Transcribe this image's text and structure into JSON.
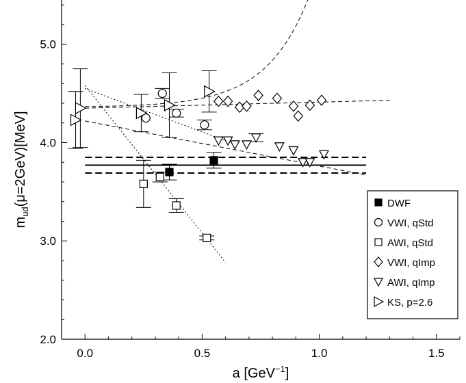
{
  "chart_data": {
    "type": "scatter",
    "xlabel": "a [GeV",
    "xlabel_sup": "−1",
    "xlabel_end": "]",
    "ylabel_main": "m",
    "ylabel_sub": "ud",
    "ylabel_rest": "(μ=2GeV)[MeV]",
    "xlim": [
      -0.1,
      1.6
    ],
    "ylim": [
      2.0,
      5.45
    ],
    "xticks": [
      0.0,
      0.5,
      1.0,
      1.5
    ],
    "xtick_labels": [
      "0.0",
      "0.5",
      "1.0",
      "1.5"
    ],
    "yticks": [
      2.0,
      3.0,
      4.0,
      5.0
    ],
    "ytick_labels": [
      "2.0",
      "3.0",
      "4.0",
      "5.0"
    ],
    "legend_position": "bottom-right",
    "series": [
      {
        "name": "DWF",
        "marker": "square-filled",
        "points": [
          {
            "x": 0.36,
            "y": 3.7,
            "err": 0.08
          },
          {
            "x": 0.55,
            "y": 3.82,
            "err": 0.08
          }
        ]
      },
      {
        "name": "VWI, qStd",
        "marker": "circle",
        "points": [
          {
            "x": 0.26,
            "y": 4.25,
            "err": 0.0
          },
          {
            "x": 0.33,
            "y": 4.5,
            "err": 0.05
          },
          {
            "x": 0.39,
            "y": 4.3,
            "err": 0.04
          },
          {
            "x": 0.51,
            "y": 4.18,
            "err": 0.05
          }
        ]
      },
      {
        "name": "AWI, qStd",
        "marker": "square",
        "points": [
          {
            "x": 0.25,
            "y": 3.58,
            "err": 0.24
          },
          {
            "x": 0.32,
            "y": 3.65,
            "err": 0.05
          },
          {
            "x": 0.39,
            "y": 3.36,
            "err": 0.07
          },
          {
            "x": 0.52,
            "y": 3.03,
            "err": 0.02
          }
        ]
      },
      {
        "name": "VWI, qImp",
        "marker": "diamond",
        "points": [
          {
            "x": 0.57,
            "y": 4.42,
            "err": 0.0
          },
          {
            "x": 0.61,
            "y": 4.42,
            "err": 0.0
          },
          {
            "x": 0.66,
            "y": 4.36,
            "err": 0.0
          },
          {
            "x": 0.69,
            "y": 4.37,
            "err": 0.0
          },
          {
            "x": 0.74,
            "y": 4.48,
            "err": 0.0
          },
          {
            "x": 0.82,
            "y": 4.45,
            "err": 0.0
          },
          {
            "x": 0.89,
            "y": 4.37,
            "err": 0.0
          },
          {
            "x": 0.91,
            "y": 4.27,
            "err": 0.0
          },
          {
            "x": 0.96,
            "y": 4.38,
            "err": 0.0
          },
          {
            "x": 1.01,
            "y": 4.43,
            "err": 0.0
          }
        ]
      },
      {
        "name": "AWI, qImp",
        "marker": "triangle-down",
        "points": [
          {
            "x": 0.57,
            "y": 4.02,
            "err": 0.0
          },
          {
            "x": 0.61,
            "y": 4.02,
            "err": 0.0
          },
          {
            "x": 0.64,
            "y": 3.98,
            "err": 0.0
          },
          {
            "x": 0.69,
            "y": 3.98,
            "err": 0.0
          },
          {
            "x": 0.73,
            "y": 4.05,
            "err": 0.04
          },
          {
            "x": 0.83,
            "y": 3.96,
            "err": 0.0
          },
          {
            "x": 0.89,
            "y": 3.92,
            "err": 0.0
          },
          {
            "x": 0.93,
            "y": 3.8,
            "err": 0.0
          },
          {
            "x": 0.96,
            "y": 3.8,
            "err": 0.0
          },
          {
            "x": 1.02,
            "y": 3.88,
            "err": 0.0
          }
        ]
      },
      {
        "name": "KS, p=2.6",
        "marker": "triangle-right",
        "points": [
          {
            "x": -0.04,
            "y": 4.23,
            "err": 0.29
          },
          {
            "x": -0.02,
            "y": 4.35,
            "err": 0.4
          },
          {
            "x": 0.24,
            "y": 4.3,
            "err": 0.19
          },
          {
            "x": 0.36,
            "y": 4.38,
            "err": 0.33
          },
          {
            "x": 0.53,
            "y": 4.52,
            "err": 0.21
          }
        ]
      }
    ],
    "dwf_band": {
      "center": 3.77,
      "upper": 3.85,
      "lower": 3.69,
      "x_range": [
        0.0,
        1.2
      ]
    },
    "fit_lines": [
      {
        "style": "dotted",
        "points": [
          [
            0.0,
            4.58
          ],
          [
            0.6,
            2.78
          ]
        ]
      },
      {
        "style": "dotted",
        "points": [
          [
            0.0,
            4.55
          ],
          [
            0.6,
            4.02
          ]
        ]
      },
      {
        "style": "dashed",
        "points": [
          [
            0.0,
            4.35
          ],
          [
            1.3,
            4.43
          ]
        ]
      },
      {
        "style": "dashed",
        "points": [
          [
            0.0,
            4.22
          ],
          [
            1.2,
            3.67
          ]
        ]
      },
      {
        "style": "dashed",
        "curve": "exp",
        "a": 4.36,
        "b": 0.00585,
        "c": 5.5,
        "x_range": [
          0.0,
          1.12
        ]
      }
    ]
  }
}
